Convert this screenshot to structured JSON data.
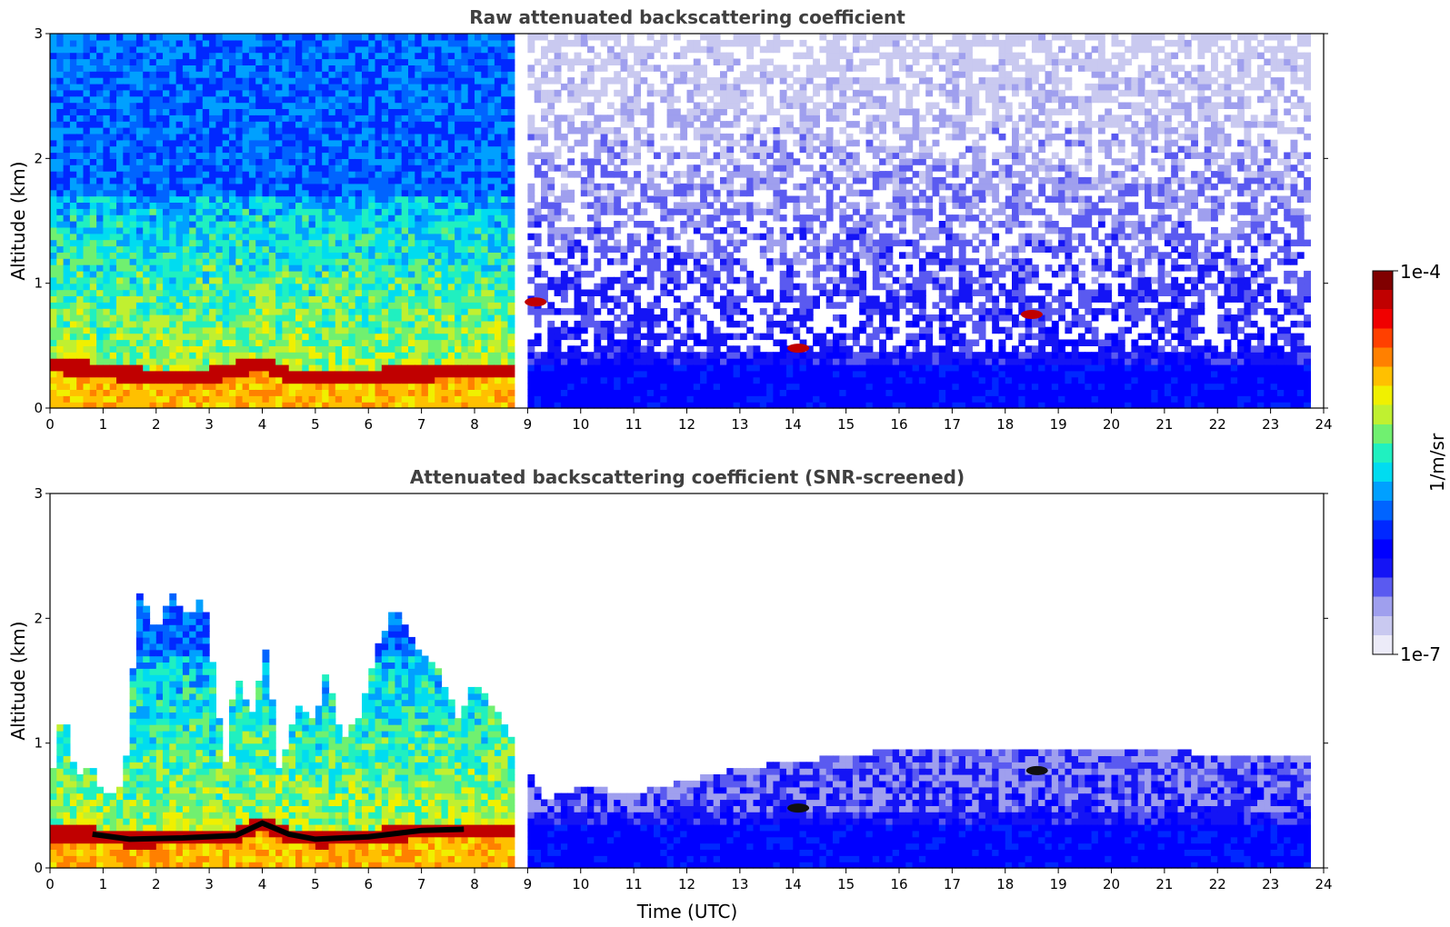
{
  "chart_data": [
    {
      "type": "heatmap",
      "title": "Raw attenuated backscattering coefficient",
      "xlabel": "",
      "ylabel": "Altitude (km)",
      "xlim": [
        0,
        24
      ],
      "ylim": [
        0,
        3
      ],
      "xticks": [
        "0",
        "1",
        "2",
        "3",
        "4",
        "5",
        "6",
        "7",
        "8",
        "9",
        "10",
        "11",
        "12",
        "13",
        "14",
        "15",
        "16",
        "17",
        "18",
        "19",
        "20",
        "21",
        "22",
        "23",
        "24"
      ],
      "yticks": [
        "0",
        "1",
        "2",
        "3"
      ],
      "data_gaps_hours": [
        [
          8.75,
          9.05
        ],
        [
          9.25,
          9.3
        ],
        [
          23.7,
          24
        ]
      ],
      "boundary_layer_top_km": [
        {
          "x": 0.0,
          "y": 0.35
        },
        {
          "x": 1.0,
          "y": 0.3
        },
        {
          "x": 2.0,
          "y": 0.25
        },
        {
          "x": 3.0,
          "y": 0.26
        },
        {
          "x": 4.0,
          "y": 0.36
        },
        {
          "x": 4.5,
          "y": 0.26
        },
        {
          "x": 5.0,
          "y": 0.24
        },
        {
          "x": 6.0,
          "y": 0.26
        },
        {
          "x": 7.0,
          "y": 0.28
        },
        {
          "x": 7.8,
          "y": 0.3
        }
      ],
      "notable_features": [
        {
          "x": 9.15,
          "y": 0.85
        },
        {
          "x": 14.1,
          "y": 0.48
        },
        {
          "x": 18.5,
          "y": 0.75
        }
      ]
    },
    {
      "type": "heatmap",
      "title": "Attenuated backscattering coefficient (SNR-screened)",
      "xlabel": "Time (UTC)",
      "ylabel": "Altitude (km)",
      "xlim": [
        0,
        24
      ],
      "ylim": [
        0,
        3
      ],
      "xticks": [
        "0",
        "1",
        "2",
        "3",
        "4",
        "5",
        "6",
        "7",
        "8",
        "9",
        "10",
        "11",
        "12",
        "13",
        "14",
        "15",
        "16",
        "17",
        "18",
        "19",
        "20",
        "21",
        "22",
        "23",
        "24"
      ],
      "yticks": [
        "0",
        "1",
        "2",
        "3"
      ],
      "data_gaps_hours": [
        [
          8.75,
          9.05
        ],
        [
          9.25,
          9.3
        ],
        [
          23.7,
          24
        ]
      ],
      "screened_top_km": [
        {
          "x": 0.0,
          "y": 0.6
        },
        {
          "x": 0.25,
          "y": 1.3
        },
        {
          "x": 0.5,
          "y": 0.7
        },
        {
          "x": 0.75,
          "y": 0.85
        },
        {
          "x": 1.0,
          "y": 0.6
        },
        {
          "x": 1.4,
          "y": 0.65
        },
        {
          "x": 1.5,
          "y": 1.3
        },
        {
          "x": 1.7,
          "y": 2.25
        },
        {
          "x": 2.0,
          "y": 1.9
        },
        {
          "x": 2.3,
          "y": 2.2
        },
        {
          "x": 2.6,
          "y": 2.0
        },
        {
          "x": 2.9,
          "y": 2.2
        },
        {
          "x": 3.1,
          "y": 1.5
        },
        {
          "x": 3.3,
          "y": 0.8
        },
        {
          "x": 3.5,
          "y": 1.6
        },
        {
          "x": 3.8,
          "y": 1.2
        },
        {
          "x": 4.1,
          "y": 1.8
        },
        {
          "x": 4.3,
          "y": 0.8
        },
        {
          "x": 4.7,
          "y": 1.3
        },
        {
          "x": 5.0,
          "y": 1.2
        },
        {
          "x": 5.2,
          "y": 1.6
        },
        {
          "x": 5.5,
          "y": 1.0
        },
        {
          "x": 5.8,
          "y": 1.2
        },
        {
          "x": 6.2,
          "y": 1.8
        },
        {
          "x": 6.5,
          "y": 2.1
        },
        {
          "x": 7.0,
          "y": 1.7
        },
        {
          "x": 7.3,
          "y": 1.6
        },
        {
          "x": 7.7,
          "y": 1.2
        },
        {
          "x": 8.0,
          "y": 1.5
        },
        {
          "x": 8.5,
          "y": 1.2
        },
        {
          "x": 8.75,
          "y": 1.0
        },
        {
          "x": 9.3,
          "y": 0.55
        },
        {
          "x": 10.0,
          "y": 0.65
        },
        {
          "x": 11.0,
          "y": 0.6
        },
        {
          "x": 12.0,
          "y": 0.7
        },
        {
          "x": 13.0,
          "y": 0.8
        },
        {
          "x": 14.0,
          "y": 0.85
        },
        {
          "x": 15.0,
          "y": 0.9
        },
        {
          "x": 16.0,
          "y": 0.95
        },
        {
          "x": 17.0,
          "y": 0.95
        },
        {
          "x": 18.0,
          "y": 0.95
        },
        {
          "x": 19.0,
          "y": 0.95
        },
        {
          "x": 20.0,
          "y": 0.95
        },
        {
          "x": 21.0,
          "y": 0.95
        },
        {
          "x": 22.0,
          "y": 0.9
        },
        {
          "x": 23.0,
          "y": 0.9
        },
        {
          "x": 23.7,
          "y": 0.9
        }
      ],
      "boundary_layer_top_km": [
        {
          "x": 0.8,
          "y": 0.27
        },
        {
          "x": 1.5,
          "y": 0.23
        },
        {
          "x": 2.5,
          "y": 0.24
        },
        {
          "x": 3.5,
          "y": 0.26
        },
        {
          "x": 4.0,
          "y": 0.36
        },
        {
          "x": 4.5,
          "y": 0.27
        },
        {
          "x": 5.0,
          "y": 0.23
        },
        {
          "x": 6.0,
          "y": 0.25
        },
        {
          "x": 7.0,
          "y": 0.3
        },
        {
          "x": 7.8,
          "y": 0.31
        }
      ],
      "notable_features": [
        {
          "x": 14.1,
          "y": 0.48
        },
        {
          "x": 18.6,
          "y": 0.78
        }
      ]
    }
  ],
  "colorbar": {
    "label": "1/m/sr",
    "max_label": "1e-4",
    "min_label": "1e-7",
    "colors": [
      "#ecebf8",
      "#c9c9f0",
      "#9f9fee",
      "#5a5af0",
      "#1414f5",
      "#0000ff",
      "#0028ff",
      "#0064ff",
      "#00a0ff",
      "#00dcf0",
      "#20f0c0",
      "#70f070",
      "#c0f030",
      "#f0f000",
      "#ffc000",
      "#ff8000",
      "#ff4000",
      "#f00000",
      "#c00000",
      "#800000"
    ]
  }
}
